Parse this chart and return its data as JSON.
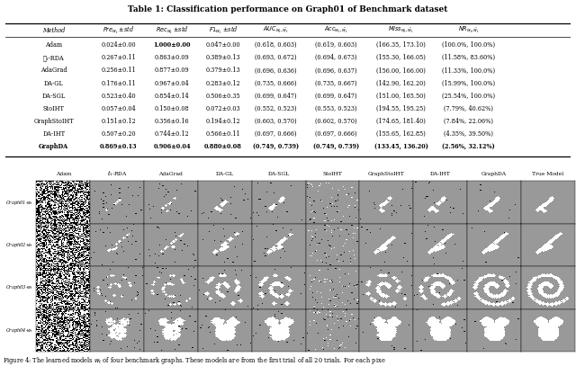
{
  "title_pre": "Table 1: Classification performance on ",
  "title_italic": "Graph01",
  "title_post": " of Benchmark dataset",
  "col_headers": [
    "Method",
    "$Pre_{w_t}$ ±std",
    "$Rec_{w_t}$ ±std",
    "$F1_{w_t}$ ±std",
    "$AUC_{w_t,\\hat{w}_t}$",
    "$Acc_{w_t,\\hat{w}_t}$",
    "$Miss_{w_t,\\hat{w}_t}$",
    "$NR_{w_t,\\hat{w}_t}$"
  ],
  "rows": [
    [
      "Adam",
      "0.024±0.00",
      "1.000±0.00",
      "0.047±0.00",
      "(0.618, 0.603)",
      "(0.619, 0.603)",
      "(166.35, 173.10)",
      "(100.0%, 100.0%)"
    ],
    [
      "ℓ₁-RDA",
      "0.267±0.11",
      "0.863±0.09",
      "0.389±0.13",
      "(0.693, 0.672)",
      "(0.694, 0.673)",
      "(155.30, 166.05)",
      "(11.58%, 83.60%)"
    ],
    [
      "AdaGrad",
      "0.256±0.11",
      "0.877±0.09",
      "0.379±0.13",
      "(0.696, 0.636)",
      "(0.696, 0.637)",
      "(156.00, 166.00)",
      "(11.33%, 100.0%)"
    ],
    [
      "DA-GL",
      "0.176±0.11",
      "0.967±0.04",
      "0.283±0.12",
      "(0.735, 0.666)",
      "(0.735, 0.667)",
      "(142.90, 162.20)",
      "(15.99%, 100.0%)"
    ],
    [
      "DA-SGL",
      "0.523±0.40",
      "0.854±0.14",
      "0.506±0.35",
      "(0.699, 0.647)",
      "(0.699, 0.647)",
      "(151.00, 165.50)",
      "(25.54%, 100.0%)"
    ],
    [
      "StoIHT",
      "0.057±0.04",
      "0.150±0.08",
      "0.072±0.03",
      "(0.552, 0.523)",
      "(0.553, 0.523)",
      "(194.55, 195.25)",
      "(7.79%, 40.62%)"
    ],
    [
      "GraphStoIHT",
      "0.151±0.12",
      "0.356±0.16",
      "0.194±0.12",
      "(0.603, 0.570)",
      "(0.602, 0.570)",
      "(174.65, 181.40)",
      "(7.84%, 22.06%)"
    ],
    [
      "DA-IHT",
      "0.507±0.20",
      "0.744±0.12",
      "0.566±0.11",
      "(0.697, 0.666)",
      "(0.697, 0.666)",
      "(155.65, 162.85)",
      "(4.35%, 39.50%)"
    ],
    [
      "GraphDA",
      "0.869±0.13",
      "0.906±0.04",
      "0.880±0.08",
      "(0.749, 0.739)",
      "(0.749, 0.739)",
      "(133.45, 136.20)",
      "(2.56%, 32.12%)"
    ]
  ],
  "bold_row": 8,
  "col_labels": [
    "Adam",
    "$\\ell_1$-RDA",
    "AdaGrad",
    "DA-GL",
    "DA-SGL",
    "StoIHT",
    "GraphStoIHT",
    "DA-IHT",
    "GraphDA",
    "True Model"
  ],
  "row_labels": [
    "Graph01-$w_t$",
    "Graph02-$w_t$",
    "Graph03-$w_t$",
    "Graph04-$w_t$"
  ],
  "caption": "Figure 4: The learned models $w_t$ of four benchmark graphs. These models are from the first trial of all 20 trials. For each pixe"
}
